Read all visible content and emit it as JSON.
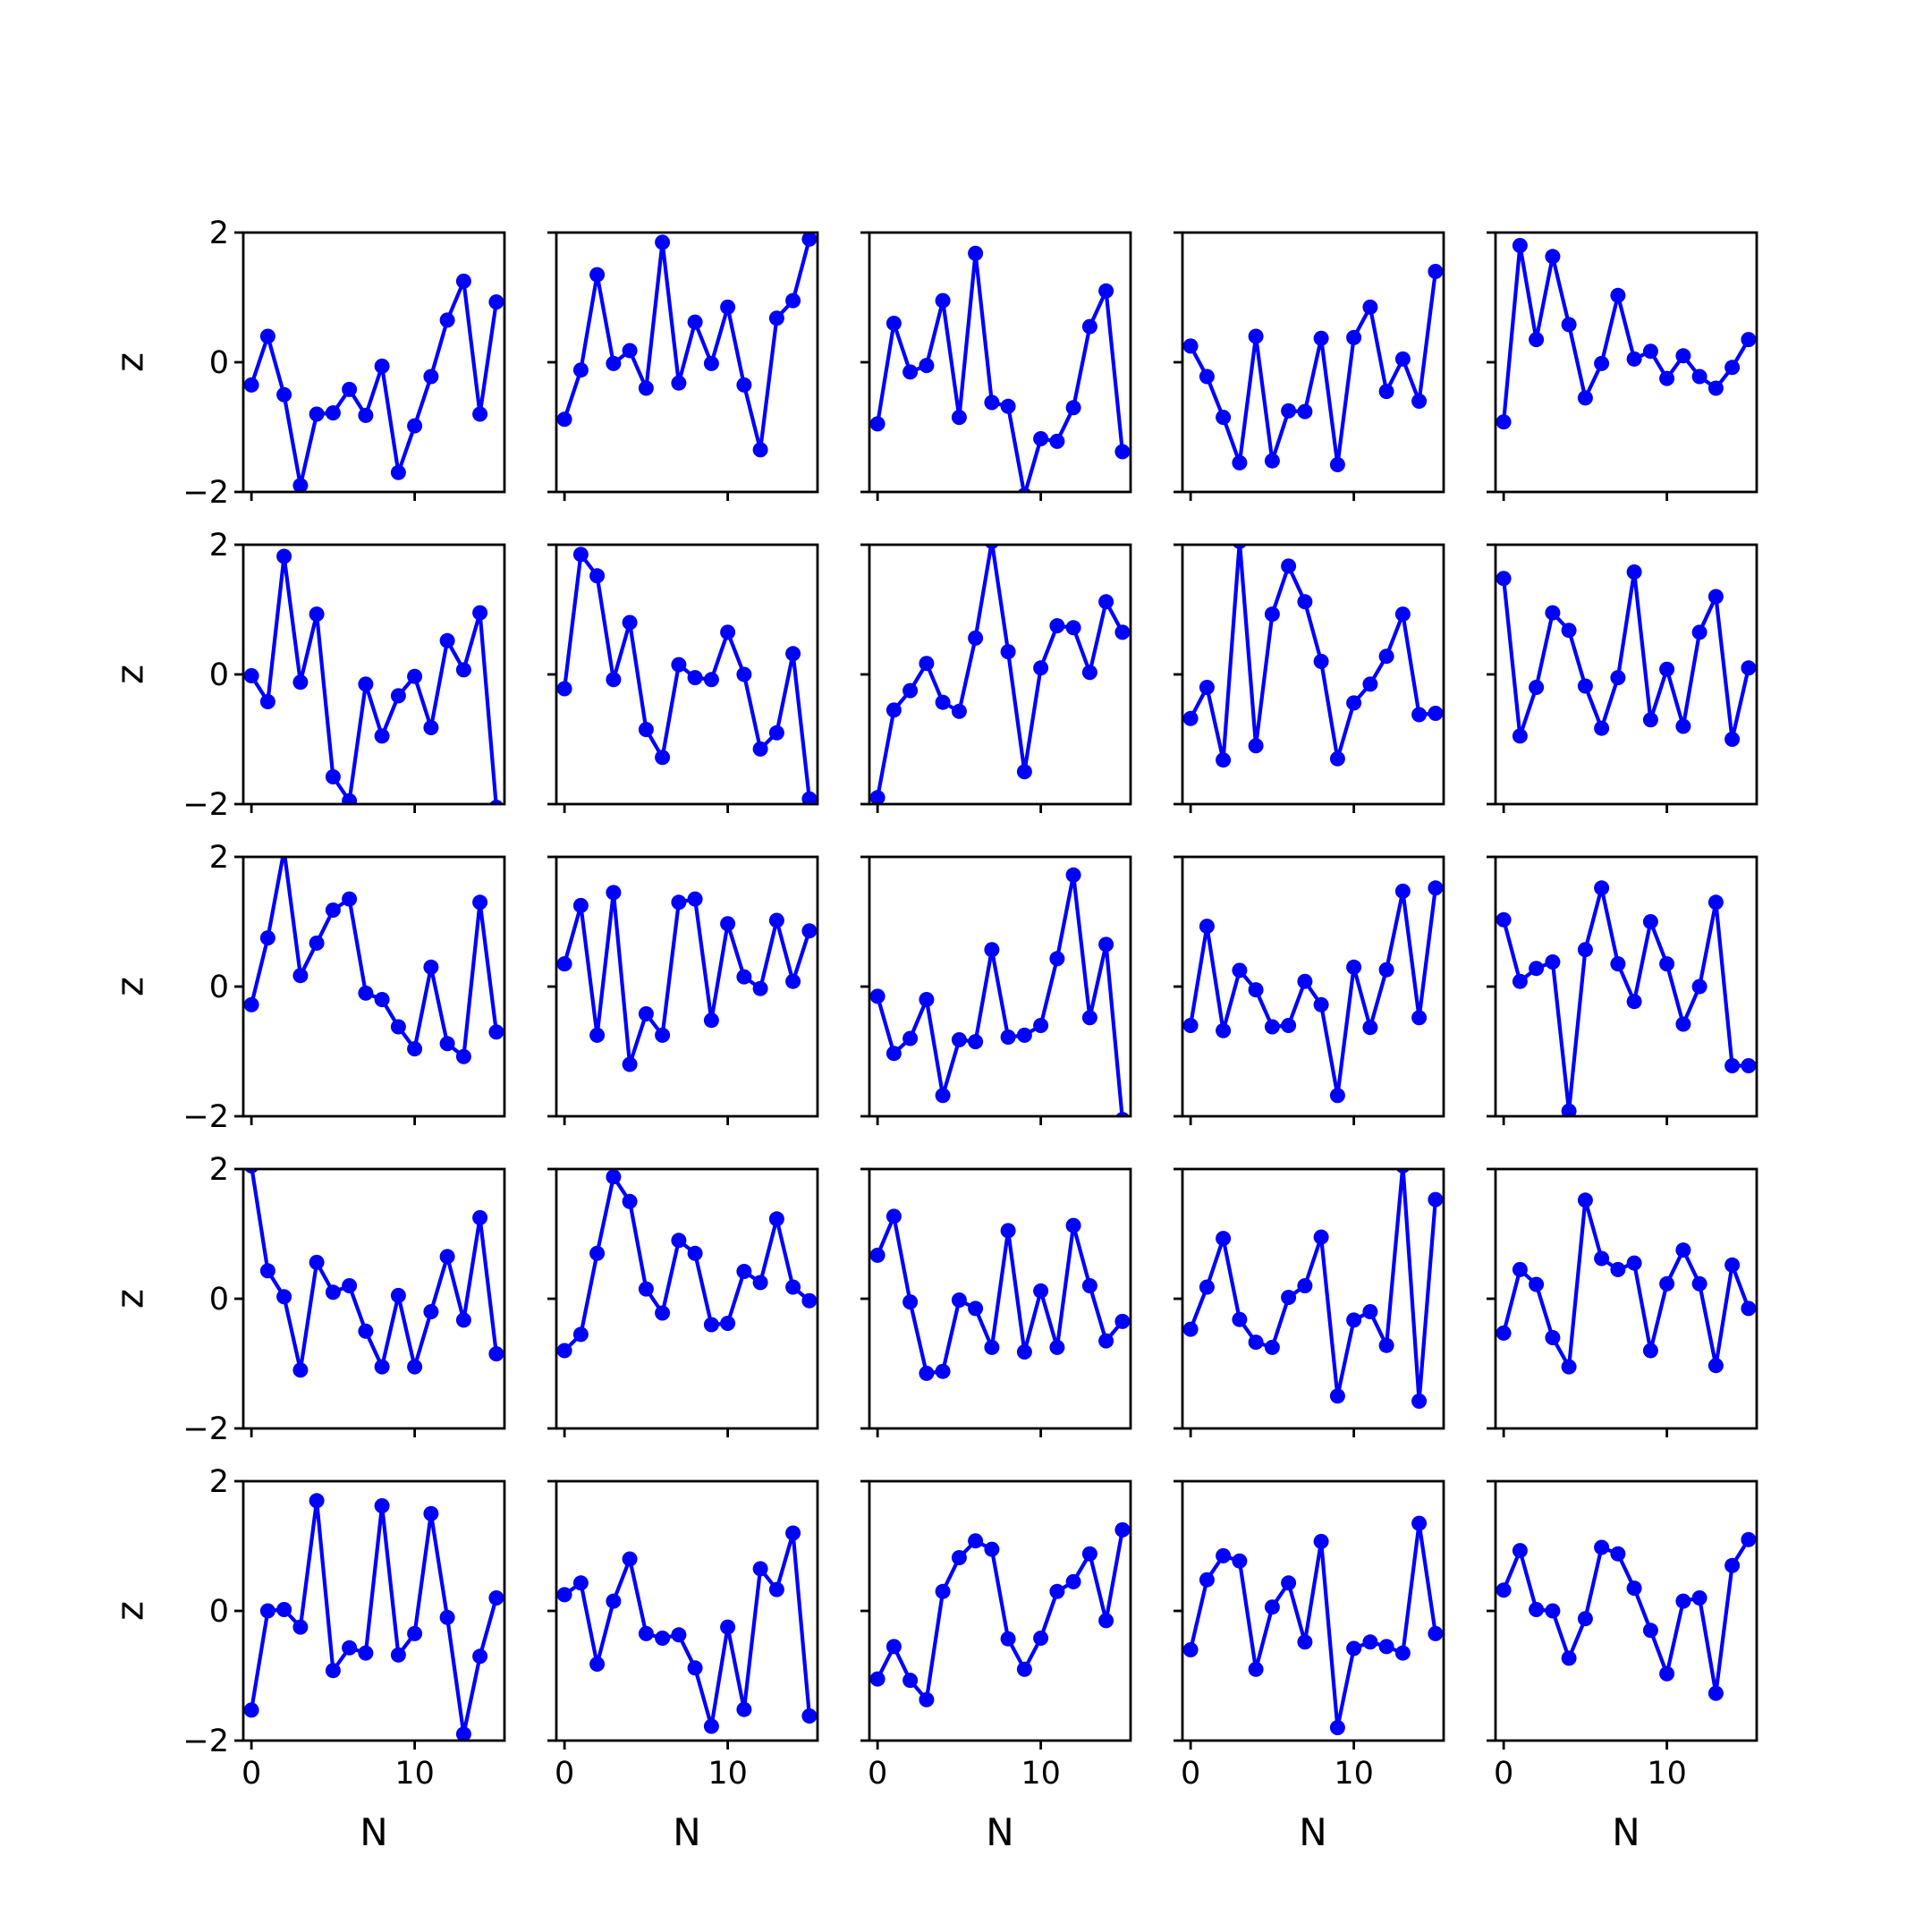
{
  "chart_data": {
    "type": "line",
    "layout": "5x5 grid of line plots with markers, shared axes",
    "x": [
      0,
      1,
      2,
      3,
      4,
      5,
      6,
      7,
      8,
      9,
      10,
      11,
      12,
      13,
      14,
      15
    ],
    "xlabel": "N",
    "ylabel": "z",
    "xlim": [
      -0.5,
      15.5
    ],
    "ylim": [
      -2,
      2
    ],
    "xticks": [
      0,
      10
    ],
    "xtick_labels": [
      "0",
      "10"
    ],
    "yticks": [
      -2,
      0,
      2
    ],
    "ytick_labels": [
      "−2",
      "0",
      "2"
    ],
    "line_color": "#0000ff",
    "marker": "circle",
    "grid": false,
    "legend": "none",
    "series": [
      {
        "values": [
          -0.35,
          0.4,
          -0.5,
          -1.9,
          -0.8,
          -0.78,
          -0.42,
          -0.82,
          -0.06,
          -1.7,
          -0.98,
          -0.22,
          0.65,
          1.25,
          -0.8,
          0.93
        ]
      },
      {
        "values": [
          -0.88,
          -0.12,
          1.35,
          -0.02,
          0.18,
          -0.4,
          1.85,
          -0.32,
          0.62,
          -0.02,
          0.85,
          -0.35,
          -1.35,
          0.68,
          0.95,
          1.9
        ]
      },
      {
        "values": [
          -0.95,
          0.6,
          -0.15,
          -0.05,
          0.95,
          -0.85,
          1.68,
          -0.62,
          -0.68,
          -2.05,
          -1.18,
          -1.22,
          -0.7,
          0.55,
          1.1,
          -1.38
        ]
      },
      {
        "values": [
          0.25,
          -0.22,
          -0.85,
          -1.55,
          0.4,
          -1.52,
          -0.75,
          -0.76,
          0.37,
          -1.58,
          0.38,
          0.85,
          -0.45,
          0.05,
          -0.6,
          1.4
        ]
      },
      {
        "values": [
          -0.92,
          1.8,
          0.35,
          1.63,
          0.58,
          -0.55,
          -0.02,
          1.03,
          0.05,
          0.17,
          -0.25,
          0.1,
          -0.22,
          -0.4,
          -0.08,
          0.35
        ]
      },
      {
        "values": [
          -0.02,
          -0.42,
          1.82,
          -0.12,
          0.93,
          -1.58,
          -1.95,
          -0.15,
          -0.95,
          -0.33,
          -0.03,
          -0.82,
          0.52,
          0.07,
          0.95,
          -2.05
        ]
      },
      {
        "values": [
          -0.22,
          1.85,
          1.52,
          -0.08,
          0.8,
          -0.85,
          -1.28,
          0.15,
          -0.05,
          -0.08,
          0.65,
          0.0,
          -1.15,
          -0.9,
          0.32,
          -1.92
        ]
      },
      {
        "values": [
          -1.9,
          -0.55,
          -0.25,
          0.17,
          -0.43,
          -0.57,
          0.56,
          2.05,
          0.35,
          -1.5,
          0.1,
          0.75,
          0.72,
          0.03,
          1.12,
          0.65
        ]
      },
      {
        "values": [
          -0.68,
          -0.2,
          -1.32,
          2.05,
          -1.1,
          0.93,
          1.67,
          1.12,
          0.2,
          -1.3,
          -0.44,
          -0.15,
          0.28,
          0.93,
          -0.62,
          -0.6
        ]
      },
      {
        "values": [
          1.48,
          -0.95,
          -0.2,
          0.95,
          0.68,
          -0.18,
          -0.83,
          -0.05,
          1.58,
          -0.7,
          0.08,
          -0.8,
          0.65,
          1.2,
          -1.0,
          0.1
        ]
      },
      {
        "values": [
          -0.28,
          0.75,
          2.1,
          0.17,
          0.67,
          1.18,
          1.35,
          -0.1,
          -0.2,
          -0.62,
          -0.96,
          0.3,
          -0.88,
          -1.08,
          1.3,
          -0.7
        ]
      },
      {
        "values": [
          0.35,
          1.25,
          -0.75,
          1.45,
          -1.2,
          -0.42,
          -0.75,
          1.3,
          1.35,
          -0.52,
          0.97,
          0.15,
          -0.03,
          1.02,
          0.08,
          0.86
        ]
      },
      {
        "values": [
          -0.15,
          -1.03,
          -0.8,
          -0.2,
          -1.68,
          -0.82,
          -0.85,
          0.57,
          -0.78,
          -0.75,
          -0.6,
          0.43,
          1.72,
          -0.48,
          0.65,
          -2.05
        ]
      },
      {
        "values": [
          -0.6,
          0.93,
          -0.68,
          0.25,
          -0.05,
          -0.62,
          -0.6,
          0.08,
          -0.28,
          -1.68,
          0.3,
          -0.63,
          0.26,
          1.47,
          -0.48,
          1.52
        ]
      },
      {
        "values": [
          1.03,
          0.08,
          0.28,
          0.38,
          -1.92,
          0.57,
          1.52,
          0.35,
          -0.23,
          1.0,
          0.35,
          -0.58,
          0.0,
          1.3,
          -1.22,
          -1.22
        ]
      },
      {
        "values": [
          2.05,
          0.43,
          0.03,
          -1.1,
          0.56,
          0.1,
          0.2,
          -0.5,
          -1.05,
          0.05,
          -1.05,
          -0.2,
          0.65,
          -0.33,
          1.25,
          -0.85
        ]
      },
      {
        "values": [
          -0.8,
          -0.55,
          0.7,
          1.88,
          1.5,
          0.15,
          -0.22,
          0.9,
          0.7,
          -0.4,
          -0.38,
          0.42,
          0.25,
          1.23,
          0.18,
          -0.03
        ]
      },
      {
        "values": [
          0.67,
          1.27,
          -0.05,
          -1.15,
          -1.12,
          -0.02,
          -0.15,
          -0.75,
          1.05,
          -0.82,
          0.12,
          -0.75,
          1.13,
          0.2,
          -0.65,
          -0.35
        ]
      },
      {
        "values": [
          -0.47,
          0.18,
          0.93,
          -0.32,
          -0.67,
          -0.75,
          0.02,
          0.2,
          0.95,
          -1.5,
          -0.33,
          -0.2,
          -0.72,
          2.05,
          -1.58,
          1.53
        ]
      },
      {
        "values": [
          -0.53,
          0.45,
          0.22,
          -0.6,
          -1.05,
          1.52,
          0.62,
          0.45,
          0.55,
          -0.8,
          0.23,
          0.75,
          0.23,
          -1.03,
          0.52,
          -0.15
        ]
      },
      {
        "values": [
          -1.53,
          0.0,
          0.02,
          -0.25,
          1.7,
          -0.92,
          -0.57,
          -0.65,
          1.62,
          -0.68,
          -0.35,
          1.5,
          -0.1,
          -1.9,
          -0.7,
          0.2
        ]
      },
      {
        "values": [
          0.25,
          0.43,
          -0.82,
          0.15,
          0.8,
          -0.35,
          -0.42,
          -0.37,
          -0.88,
          -1.78,
          -0.25,
          -1.52,
          0.65,
          0.33,
          1.2,
          -1.62
        ]
      },
      {
        "values": [
          -1.05,
          -0.55,
          -1.07,
          -1.37,
          0.3,
          0.82,
          1.08,
          0.95,
          -0.43,
          -0.9,
          -0.42,
          0.3,
          0.45,
          0.88,
          -0.15,
          1.25
        ]
      },
      {
        "values": [
          -0.6,
          0.48,
          0.85,
          0.77,
          -0.9,
          0.06,
          0.43,
          -0.48,
          1.07,
          -1.8,
          -0.58,
          -0.48,
          -0.55,
          -0.65,
          1.35,
          -0.35
        ]
      },
      {
        "values": [
          0.32,
          0.93,
          0.02,
          0.0,
          -0.73,
          -0.12,
          0.98,
          0.88,
          0.35,
          -0.3,
          -0.97,
          0.15,
          0.2,
          -1.27,
          0.7,
          1.1
        ]
      }
    ]
  }
}
